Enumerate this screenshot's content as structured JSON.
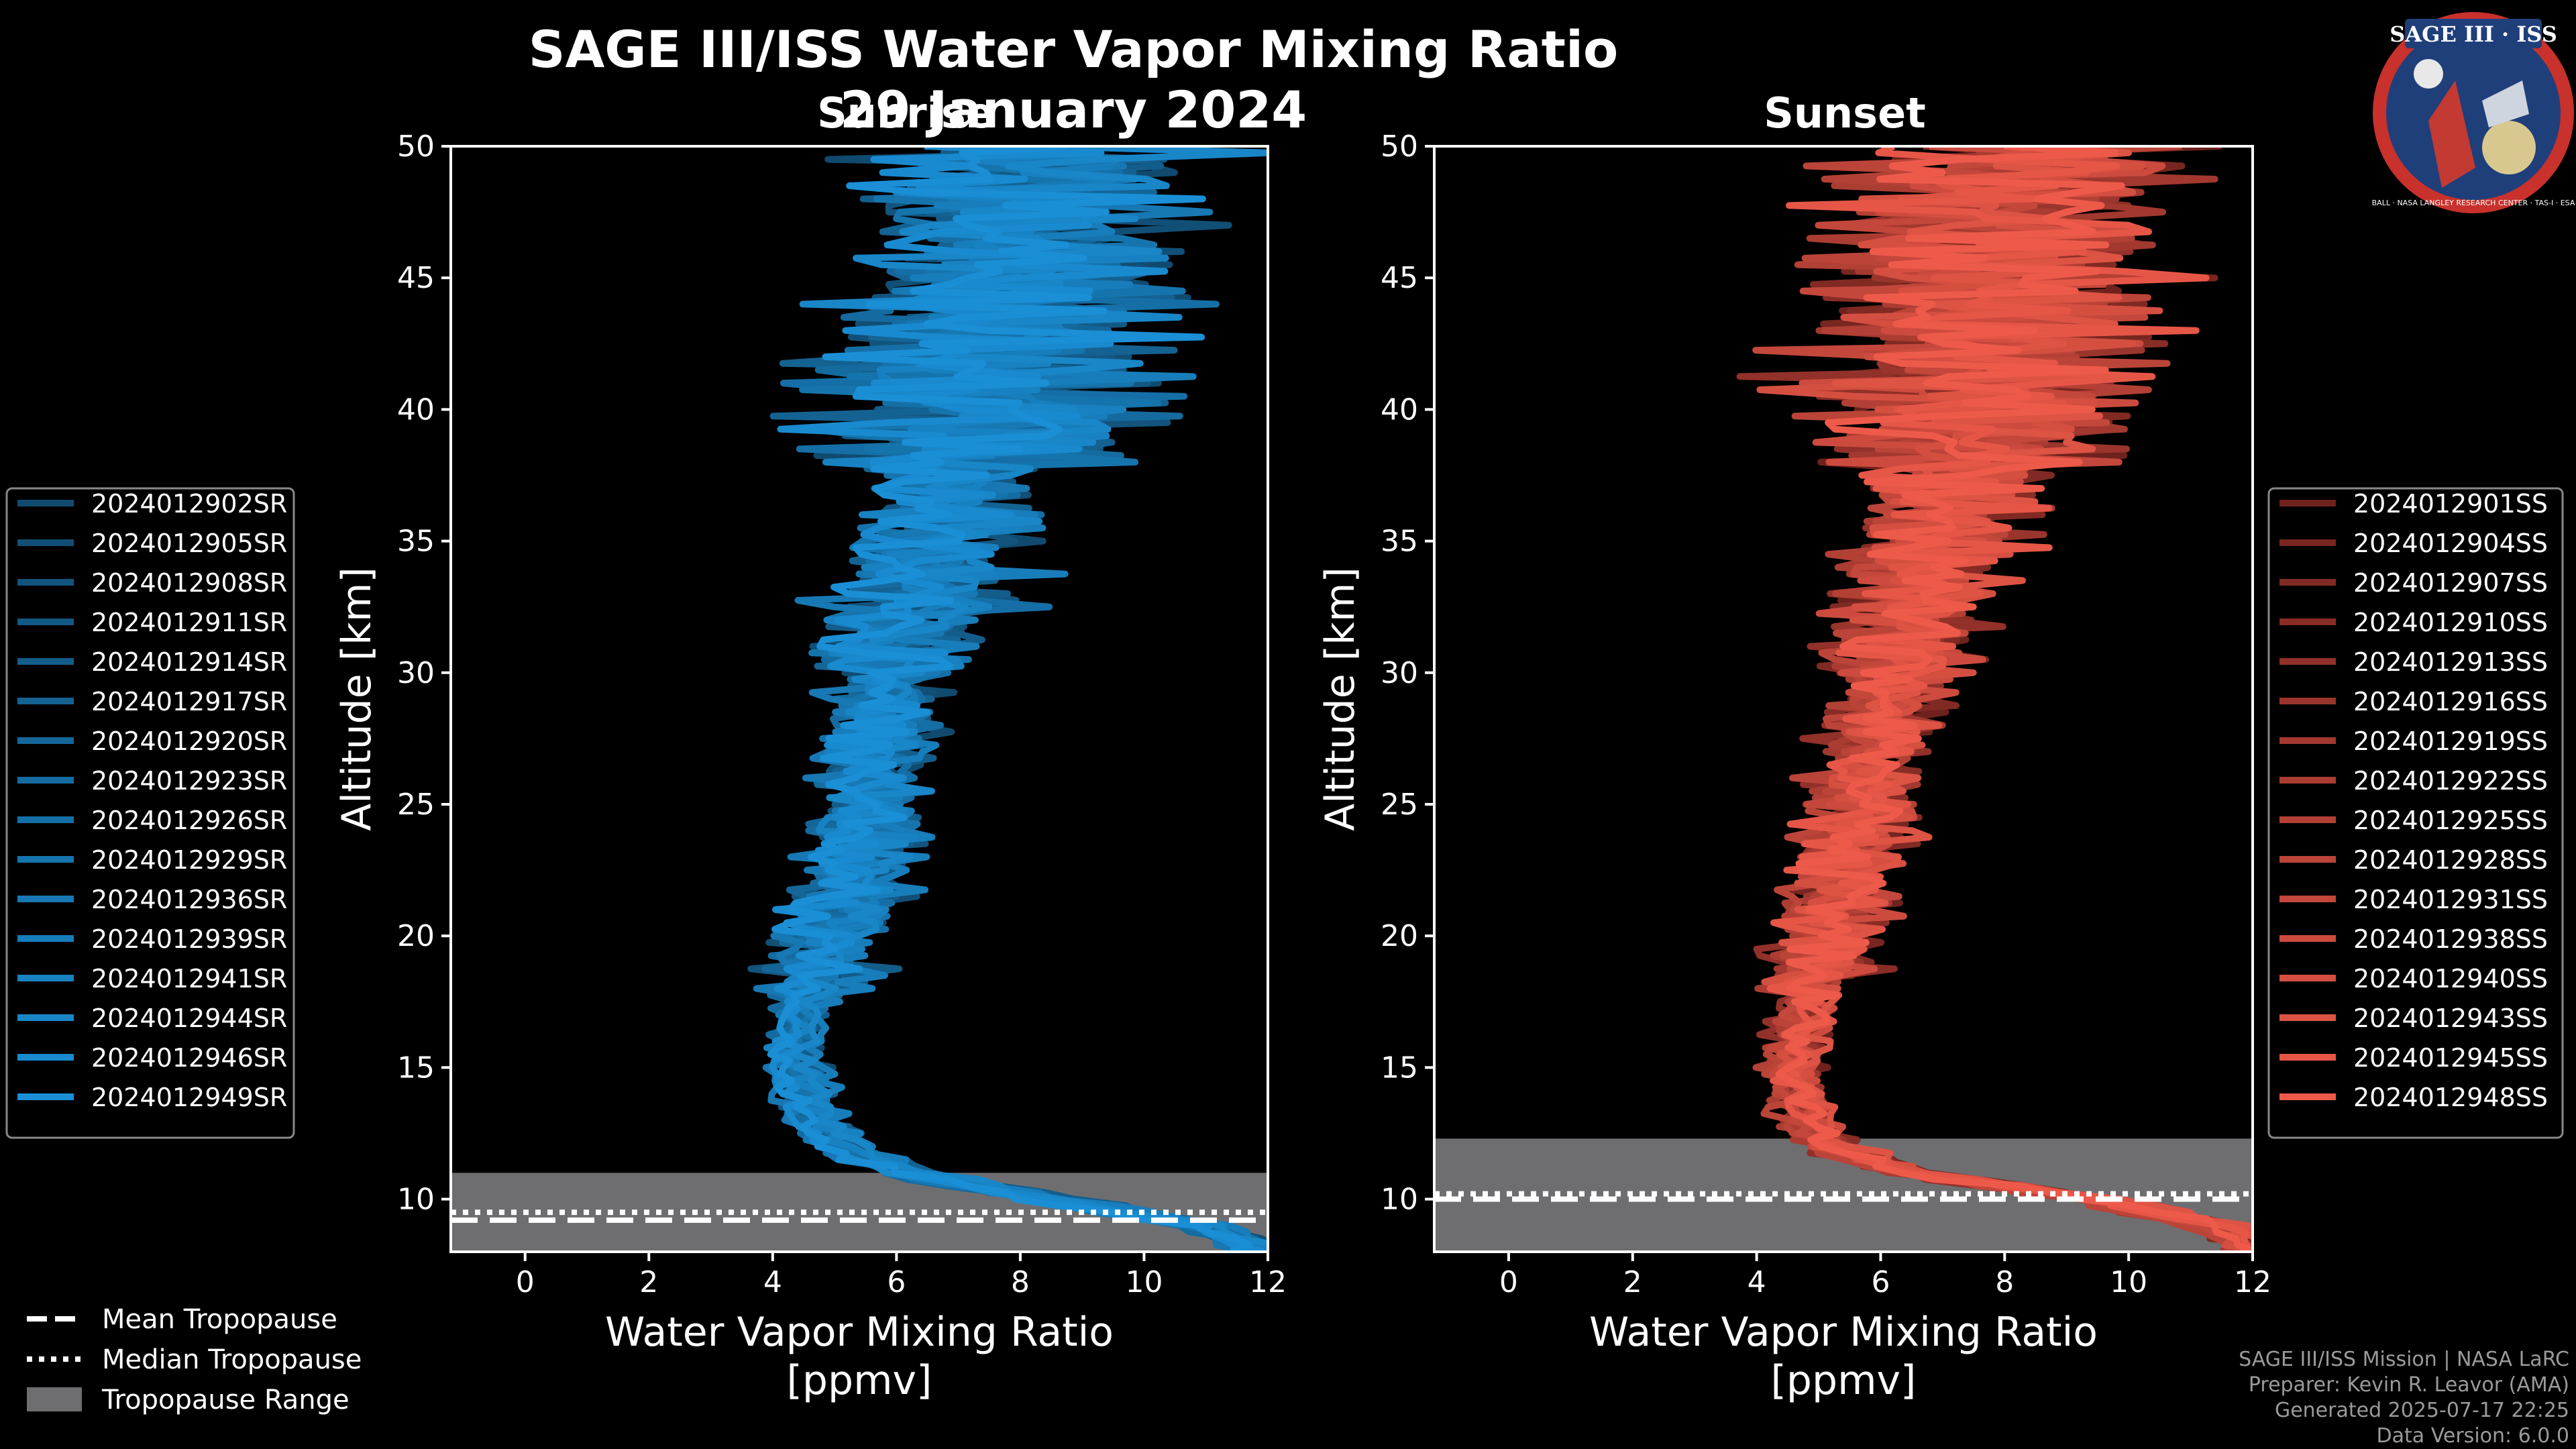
{
  "title": "SAGE III/ISS Water Vapor Mixing Ratio",
  "date": "29 January 2024",
  "logo": {
    "top": "SAGE III · ISS",
    "bottom": "BALL · NASA LANGLEY RESEARCH CENTER · TAS-I · ESA"
  },
  "colors": {
    "sunrise": "#1a8fd6",
    "sunset": "#ee5a4a",
    "range": "#6e6e70",
    "background": "#000000"
  },
  "chart_data": [
    {
      "type": "line",
      "subtitle": "Sunrise",
      "xlabel": "Water Vapor Mixing Ratio",
      "xunit": "[ppmv]",
      "ylabel": "Altitude [km]",
      "xlim": [
        -1.2,
        12
      ],
      "ylim": [
        8,
        50
      ],
      "xticks": [
        0,
        2,
        4,
        6,
        8,
        10,
        12
      ],
      "yticks": [
        10,
        15,
        20,
        25,
        30,
        35,
        40,
        45,
        50
      ],
      "tropopause": {
        "mean": 9.2,
        "median": 9.5,
        "range": [
          8,
          11
        ]
      },
      "series": [
        "2024012902SR",
        "2024012905SR",
        "2024012908SR",
        "2024012911SR",
        "2024012914SR",
        "2024012917SR",
        "2024012920SR",
        "2024012923SR",
        "2024012926SR",
        "2024012929SR",
        "2024012936SR",
        "2024012939SR",
        "2024012941SR",
        "2024012944SR",
        "2024012946SR",
        "2024012949SR"
      ],
      "mean_profile": {
        "alt": [
          8,
          9,
          10,
          11,
          12,
          13,
          14,
          15,
          16,
          17,
          18,
          19,
          20,
          22,
          24,
          26,
          28,
          30,
          33,
          36,
          40,
          45,
          50
        ],
        "ppmv": [
          12,
          11,
          8.5,
          6.2,
          5.1,
          4.7,
          4.5,
          4.4,
          4.4,
          4.5,
          4.6,
          4.8,
          5.0,
          5.3,
          5.5,
          5.6,
          5.8,
          6.0,
          6.4,
          6.9,
          7.4,
          7.8,
          8.2
        ]
      }
    },
    {
      "type": "line",
      "subtitle": "Sunset",
      "xlabel": "Water Vapor Mixing Ratio",
      "xunit": "[ppmv]",
      "ylabel": "Altitude [km]",
      "xlim": [
        -1.2,
        12
      ],
      "ylim": [
        8,
        50
      ],
      "xticks": [
        0,
        2,
        4,
        6,
        8,
        10,
        12
      ],
      "yticks": [
        10,
        15,
        20,
        25,
        30,
        35,
        40,
        45,
        50
      ],
      "tropopause": {
        "mean": 10.0,
        "median": 10.2,
        "range": [
          8,
          12.3
        ]
      },
      "series": [
        "2024012901SS",
        "2024012904SS",
        "2024012907SS",
        "2024012910SS",
        "2024012913SS",
        "2024012916SS",
        "2024012919SS",
        "2024012922SS",
        "2024012925SS",
        "2024012928SS",
        "2024012931SS",
        "2024012938SS",
        "2024012940SS",
        "2024012943SS",
        "2024012945SS",
        "2024012948SS"
      ],
      "mean_profile": {
        "alt": [
          8,
          9,
          10,
          11,
          12,
          13,
          14,
          15,
          16,
          17,
          18,
          19,
          20,
          22,
          24,
          26,
          28,
          30,
          33,
          36,
          40,
          45,
          50
        ],
        "ppmv": [
          12,
          11.5,
          9.5,
          6.5,
          5.2,
          4.8,
          4.6,
          4.6,
          4.7,
          4.8,
          4.9,
          5.0,
          5.1,
          5.4,
          5.6,
          5.8,
          6.0,
          6.2,
          6.6,
          7.0,
          7.5,
          7.9,
          8.3
        ]
      }
    }
  ],
  "legend_bottom": [
    {
      "label": "Mean Tropopause",
      "style": "dashed"
    },
    {
      "label": "Median Tropopause",
      "style": "dotted"
    },
    {
      "label": "Tropopause Range",
      "style": "patch"
    }
  ],
  "credits": [
    "SAGE III/ISS Mission | NASA LaRC",
    "Preparer: Kevin R. Leavor (AMA)",
    "Generated 2025-07-17 22:25",
    "Data Version: 6.0.0"
  ]
}
